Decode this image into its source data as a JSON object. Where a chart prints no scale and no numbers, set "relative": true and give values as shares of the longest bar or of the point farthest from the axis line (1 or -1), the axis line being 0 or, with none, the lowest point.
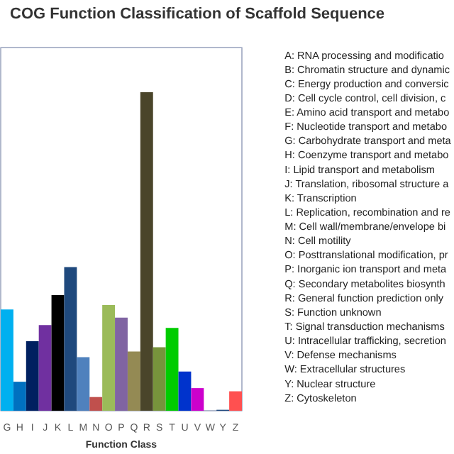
{
  "chart_data": {
    "type": "bar",
    "title": "COG Function Classification of Scaffold Sequence",
    "xlabel": "Function Class",
    "relative": true,
    "grid": false,
    "categories": [
      "G",
      "H",
      "I",
      "J",
      "K",
      "L",
      "M",
      "N",
      "O",
      "P",
      "Q",
      "R",
      "S",
      "T",
      "U",
      "V",
      "W",
      "Y",
      "Z"
    ],
    "values": [
      0.318,
      0.091,
      0.218,
      0.269,
      0.363,
      0.451,
      0.168,
      0.043,
      0.332,
      0.292,
      0.186,
      1,
      0.199,
      0.26,
      0.123,
      0.071,
      0,
      0.003,
      0.061
    ],
    "colors": [
      "#00b0f0",
      "#0070c0",
      "#002060",
      "#7030a0",
      "#000000",
      "#1f497d",
      "#4f81bd",
      "#c0504d",
      "#9bbb59",
      "#8064a2",
      "#948a54",
      "#4a452a",
      "#77933c",
      "#00cc00",
      "#0033cc",
      "#cc00cc",
      "#ffffff",
      "#1f497d",
      "#ff5050"
    ],
    "annotations": [
      "A: RNA processing and modificatio",
      "B: Chromatin structure and dynamic",
      "C: Energy production and conversic",
      "D: Cell cycle control, cell division, c",
      "E: Amino acid transport and metabo",
      "F: Nucleotide transport and metabo",
      "G: Carbohydrate transport and meta",
      "H: Coenzyme transport and metabo",
      "I: Lipid transport and metabolism",
      "J: Translation, ribosomal structure a",
      "K: Transcription",
      "L: Replication, recombination and re",
      "M: Cell wall/membrane/envelope bi",
      "N: Cell motility",
      "O: Posttranslational modification, pr",
      "P: Inorganic ion transport and meta",
      "Q: Secondary metabolites biosynth",
      "R: General function prediction only",
      "S: Function unknown",
      "T: Signal transduction mechanisms",
      "U: Intracellular trafficking, secretion",
      "V: Defense mechanisms",
      "W: Extracellular structures",
      "Y: Nuclear structure",
      "Z: Cytoskeleton"
    ]
  }
}
